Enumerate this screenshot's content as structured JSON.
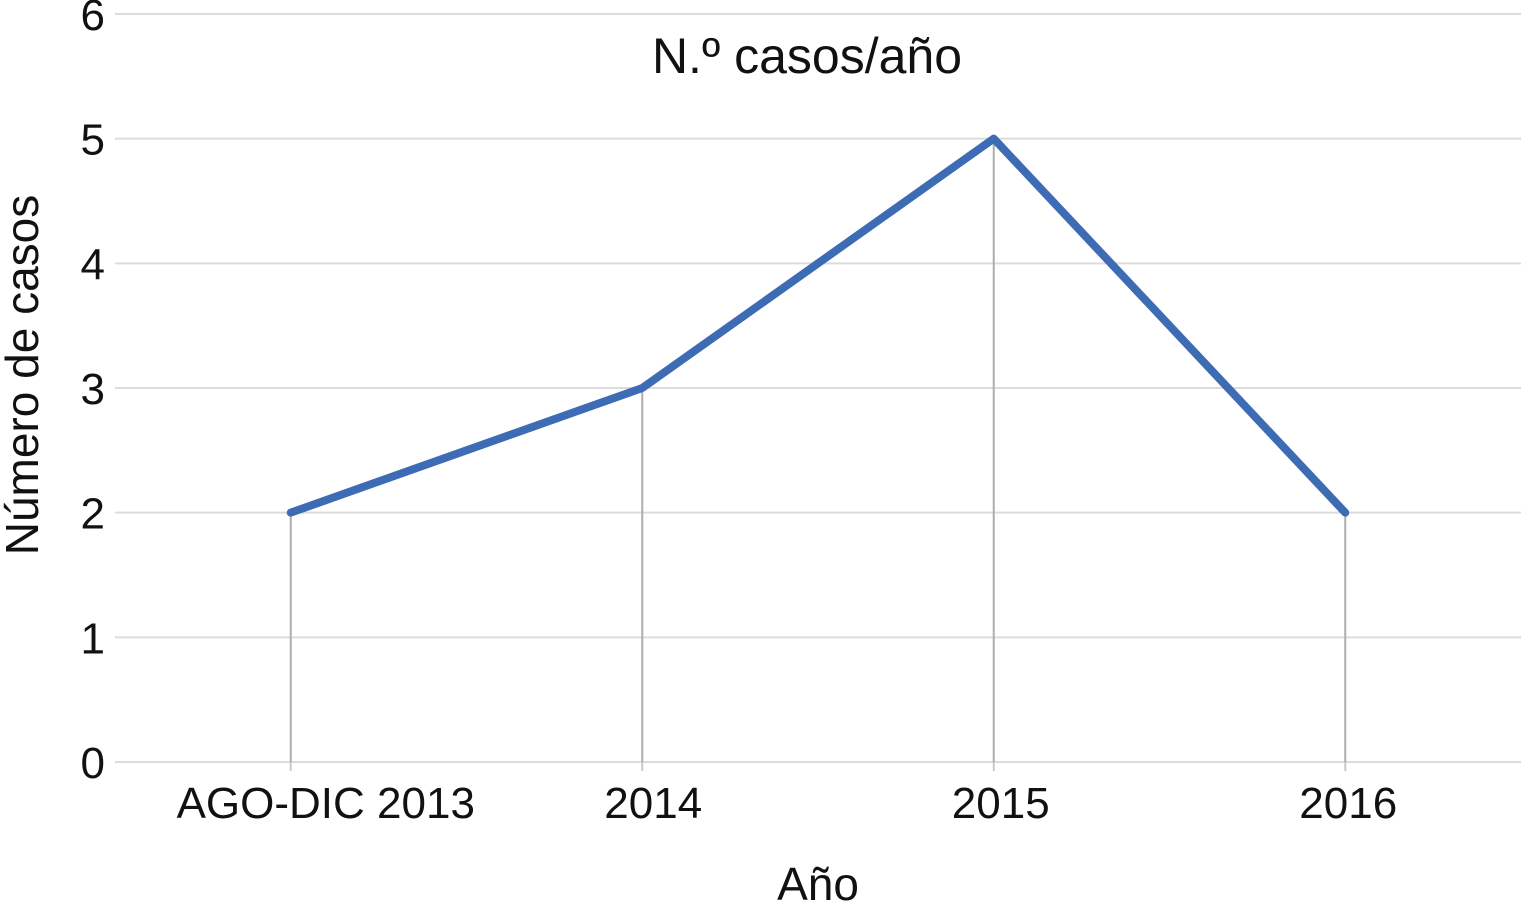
{
  "chart_data": {
    "type": "line",
    "title": "N.º casos/año",
    "xlabel": "Año",
    "ylabel": "Número de casos",
    "categories": [
      "AGO-DIC 2013",
      "2014",
      "2015",
      "2016"
    ],
    "values": [
      2,
      3,
      5,
      2
    ],
    "series": [
      {
        "name": "N.º casos/año",
        "values": [
          2,
          3,
          5,
          2
        ]
      }
    ],
    "ylim": [
      0,
      6
    ],
    "ytick_step": 1,
    "yticks": [
      0,
      1,
      2,
      3,
      4,
      5,
      6
    ],
    "grid": "horizontal-on",
    "drop_lines_to_axis": true,
    "legend_position": "none",
    "colors": {
      "line": "#3D6CB4",
      "gridline": "#DCDCDC",
      "drop_line": "#ADADAD",
      "tick_stub": "#C9C9C9",
      "text": "#111111",
      "background": "#FFFFFF"
    }
  }
}
